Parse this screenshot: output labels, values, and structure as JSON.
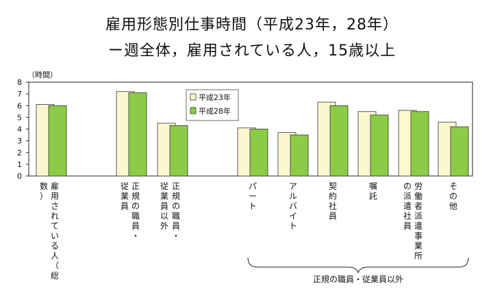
{
  "title_line1": "雇用形態別仕事時間（平成23年，28年）",
  "title_line2": "ー週全体，雇用されている人，15歳以上",
  "chart_data": {
    "type": "bar",
    "y_unit_label": "（時間）",
    "ylim": [
      0,
      8
    ],
    "yticks": [
      0,
      1,
      2,
      3,
      4,
      5,
      6,
      7,
      8
    ],
    "grid": false,
    "legend_position": "top-center",
    "categories": [
      "雇用されている人（総数）",
      "正規の職員・従業員",
      "正規の職員・従業員以外",
      "パート",
      "アルバイト",
      "契約社員",
      "嘱託",
      "労働者派遣事業所の派遣社員",
      "その他"
    ],
    "series": [
      {
        "name": "平成23年",
        "color": "#fbf7cf",
        "values": [
          6.1,
          7.2,
          4.5,
          4.1,
          3.7,
          6.3,
          5.5,
          5.6,
          4.6
        ]
      },
      {
        "name": "平成28年",
        "color": "#8ccb45",
        "values": [
          6.0,
          7.1,
          4.3,
          4.0,
          3.5,
          6.0,
          5.2,
          5.5,
          4.2
        ]
      }
    ],
    "group_annotation": "正規の職員・従業員以外"
  }
}
